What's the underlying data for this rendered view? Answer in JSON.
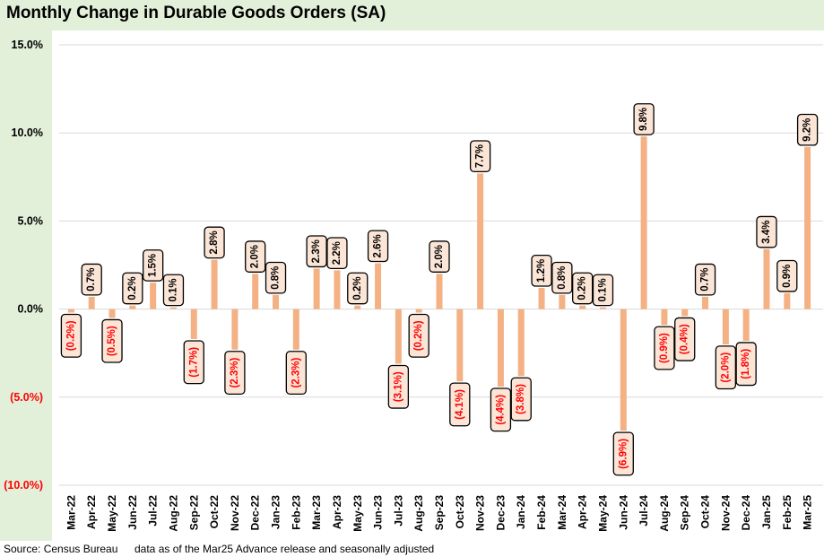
{
  "header": {
    "title": "Monthly Change in Durable Goods Orders (SA)"
  },
  "footer": {
    "source": "Source: Census Bureau",
    "note": "data as of the Mar25 Advance release and seasonally adjusted"
  },
  "colors": {
    "bar": "#f4b183",
    "negative_label": "#ff0000",
    "label_box": "#fbe5d6",
    "panel_background": "#e2efd9",
    "gridline": "#d9d9d9"
  },
  "chart_data": {
    "type": "bar",
    "title": "Monthly Change in Durable Goods Orders (SA)",
    "xlabel": "",
    "ylabel": "",
    "ylim": [
      -10,
      15
    ],
    "yticks": [
      15,
      10,
      5,
      0,
      -5,
      -10
    ],
    "ytick_labels": [
      "15.0%",
      "10.0%",
      "5.0%",
      "0.0%",
      "(5.0%)",
      "(10.0%)"
    ],
    "grid": true,
    "legend": "none",
    "categories": [
      "Mar-22",
      "Apr-22",
      "May-22",
      "Jun-22",
      "Jul-22",
      "Aug-22",
      "Sep-22",
      "Oct-22",
      "Nov-22",
      "Dec-22",
      "Jan-23",
      "Feb-23",
      "Mar-23",
      "Apr-23",
      "May-23",
      "Jun-23",
      "Jul-23",
      "Aug-23",
      "Sep-23",
      "Oct-23",
      "Nov-23",
      "Dec-23",
      "Jan-24",
      "Feb-24",
      "Mar-24",
      "Apr-24",
      "May-24",
      "Jun-24",
      "Jul-24",
      "Aug-24",
      "Sep-24",
      "Oct-24",
      "Nov-24",
      "Dec-24",
      "Jan-25",
      "Feb-25",
      "Mar-25"
    ],
    "values": [
      -0.2,
      0.7,
      -0.5,
      0.2,
      1.5,
      0.1,
      -1.7,
      2.8,
      -2.3,
      2.0,
      0.8,
      -2.3,
      2.3,
      2.2,
      0.2,
      2.6,
      -3.1,
      -0.2,
      2.0,
      -4.1,
      7.7,
      -4.4,
      -3.8,
      1.2,
      0.8,
      0.2,
      0.1,
      -6.9,
      9.8,
      -0.9,
      -0.4,
      0.7,
      -2.0,
      -1.8,
      3.4,
      0.9,
      9.2
    ],
    "data_labels": [
      "(0.2%)",
      "0.7%",
      "(0.5%)",
      "0.2%",
      "1.5%",
      "0.1%",
      "(1.7%)",
      "2.8%",
      "(2.3%)",
      "2.0%",
      "0.8%",
      "(2.3%)",
      "2.3%",
      "2.2%",
      "0.2%",
      "2.6%",
      "(3.1%)",
      "(0.2%)",
      "2.0%",
      "(4.1%)",
      "7.7%",
      "(4.4%)",
      "(3.8%)",
      "1.2%",
      "0.8%",
      "0.2%",
      "0.1%",
      "(6.9%)",
      "9.8%",
      "(0.9%)",
      "(0.4%)",
      "0.7%",
      "(2.0%)",
      "(1.8%)",
      "3.4%",
      "0.9%",
      "9.2%"
    ]
  }
}
